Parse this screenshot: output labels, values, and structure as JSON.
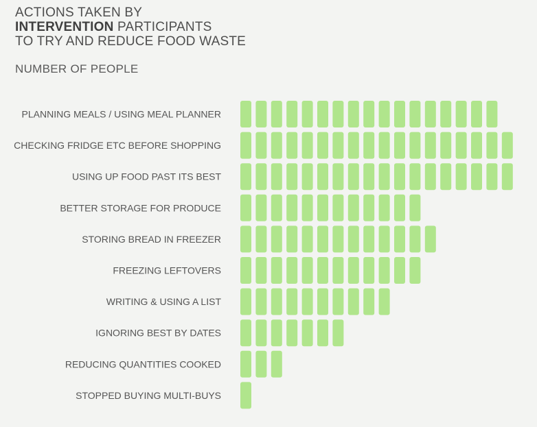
{
  "title": {
    "line1": "ACTIONS TAKEN BY",
    "line2_bold": "INTERVENTION",
    "line2_rest": " PARTICIPANTS",
    "line3": "TO TRY AND REDUCE FOOD WASTE"
  },
  "subtitle": "NUMBER OF PEOPLE",
  "chart_data": {
    "type": "bar",
    "orientation": "horizontal",
    "style": "pictograph-blocks",
    "unit": "NUMBER OF PEOPLE",
    "categories": [
      "PLANNING MEALS / USING MEAL PLANNER",
      "CHECKING FRIDGE ETC BEFORE SHOPPING",
      "USING UP FOOD PAST ITS BEST",
      "BETTER STORAGE FOR PRODUCE",
      "STORING BREAD IN FREEZER",
      "FREEZING LEFTOVERS",
      "WRITING & USING A LIST",
      "IGNORING BEST BY DATES",
      "REDUCING QUANTITIES COOKED",
      "STOPPED BUYING MULTI-BUYS"
    ],
    "values": [
      17,
      18,
      18,
      12,
      13,
      12,
      10,
      7,
      3,
      1
    ],
    "colors": {
      "block": "#b0e58c",
      "label": "#555555",
      "background": "#f3f4f2"
    }
  }
}
